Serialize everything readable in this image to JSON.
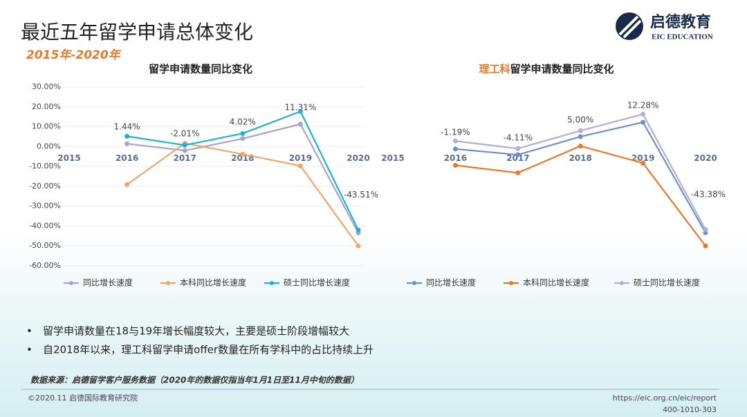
{
  "header": {
    "title": "最近五年留学申请总体变化",
    "subtitle": "2015年-2020年",
    "logo_text": "启德教育",
    "logo_subtext": "EIC EDUCATION"
  },
  "chart_data": [
    {
      "type": "line",
      "title": [
        "留学申请数量同比变化"
      ],
      "categories": [
        "2015",
        "2016",
        "2017",
        "2018",
        "2019",
        "2020"
      ],
      "ylim": [
        -60,
        30
      ],
      "yticks": [
        {
          "value": 30,
          "label": "30.00%"
        },
        {
          "value": 20,
          "label": "20.00%"
        },
        {
          "value": 10,
          "label": "10.00%"
        },
        {
          "value": 0,
          "label": "0.00%"
        },
        {
          "value": -10,
          "label": "-10.00%"
        },
        {
          "value": -20,
          "label": "-20.00%"
        },
        {
          "value": -30,
          "label": "-30.00%"
        },
        {
          "value": -40,
          "label": "-40.00%"
        },
        {
          "value": -50,
          "label": "-50.00%"
        },
        {
          "value": -60,
          "label": "-60.00%"
        }
      ],
      "grid": true,
      "series": [
        {
          "name": "同比增长速度",
          "color": "#a9a3cc",
          "values": [
            null,
            1.44,
            -2.01,
            4.02,
            11.31,
            -43.51
          ],
          "value_labels": [
            null,
            "1.44%",
            "-2.01%",
            "4.02%",
            "11.31%",
            "-43.51%"
          ]
        },
        {
          "name": "本科同比增长速度",
          "color": "#f4a46a",
          "values": [
            null,
            -19.1,
            1.7,
            -3.8,
            -9.7,
            -50
          ]
        },
        {
          "name": "硕士同比增长速度",
          "color": "#1fb1cf",
          "values": [
            null,
            5.2,
            0.7,
            6.6,
            17.7,
            -42
          ]
        }
      ]
    },
    {
      "type": "line",
      "title": [
        "理工科",
        "留学申请数量同比变化"
      ],
      "title_highlight_color": "#e8782a",
      "categories": [
        "2015",
        "2016",
        "2017",
        "2018",
        "2019",
        "2020"
      ],
      "ylim": [
        -60,
        30
      ],
      "grid": false,
      "series": [
        {
          "name": "同比增长速度",
          "color": "#6e8fc9",
          "values": [
            null,
            -1.19,
            -4.11,
            5.0,
            12.28,
            -43.38
          ],
          "value_labels": [
            null,
            "-1.19%",
            "-4.11%",
            "5.00%",
            "12.28%",
            "-43.38%"
          ]
        },
        {
          "name": "本科同比增长速度",
          "color": "#e8782a",
          "values": [
            null,
            -9.4,
            -13.2,
            0.3,
            -8.3,
            -50
          ]
        },
        {
          "name": "硕士同比增长速度",
          "color": "#b3aed3",
          "values": [
            null,
            2.8,
            -1,
            8,
            16.3,
            -41.7
          ]
        }
      ]
    }
  ],
  "bullets": [
    "留学申请数量在18与19年增长幅度较大，主要是硕士阶段增幅较大",
    "自2018年以来，理工科留学申请offer数量在所有学科中的占比持续上升"
  ],
  "source": "数据来源：启德留学客户服务数据（2020年的数据仅指当年1月1日至11月中旬的数据）",
  "footer": {
    "copyright": "©2020.11 启德国际教育研究院",
    "url": "https://eic.org.cn/eic/report",
    "phone": "400-1010-303"
  }
}
